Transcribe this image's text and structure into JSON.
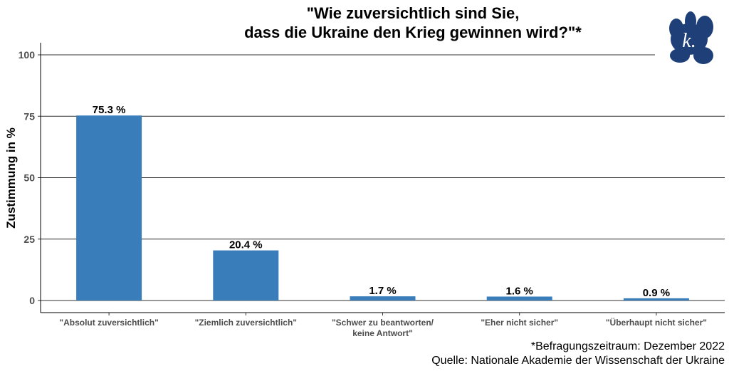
{
  "chart_data": {
    "type": "bar",
    "title": [
      "\"Wie zuversichtlich sind Sie,",
      "dass die Ukraine den Krieg gewinnen wird?\"*"
    ],
    "ylabel": "Zustimmung in %",
    "xlabel": "",
    "ylim": [
      0,
      100
    ],
    "yticks": [
      0,
      25,
      50,
      75,
      100
    ],
    "grid": true,
    "categories": [
      [
        "\"Absolut zuversichtlich\""
      ],
      [
        "\"Ziemlich zuversichtlich\""
      ],
      [
        "\"Schwer zu beantworten/",
        "keine Antwort\""
      ],
      [
        "\"Eher nicht sicher\""
      ],
      [
        "\"Überhaupt nicht sicher\""
      ]
    ],
    "values": [
      75.3,
      20.4,
      1.7,
      1.6,
      0.9
    ],
    "data_labels": [
      "75.3 %",
      "20.4 %",
      "1.7 %",
      "1.6 %",
      "0.9 %"
    ],
    "bar_color": "#3a7dbb",
    "captions": [
      "*Befragungszeitraum: Dezember 2022",
      "Quelle: Nationale Akademie der Wissenschaft der Ukraine"
    ],
    "logo": {
      "text": "k.",
      "color": "#1f3f78"
    }
  }
}
